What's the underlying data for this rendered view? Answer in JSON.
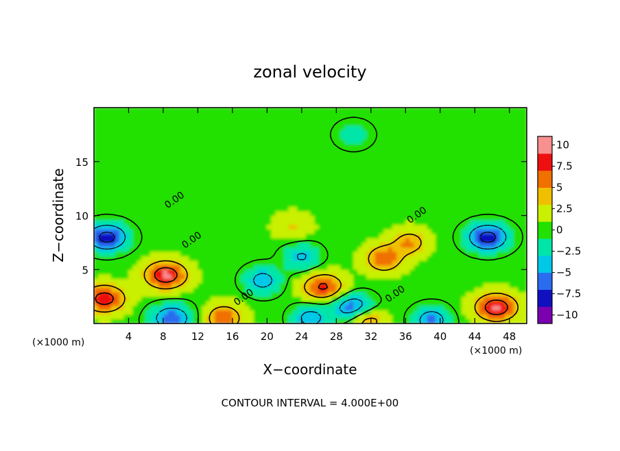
{
  "chart_data": {
    "type": "heatmap",
    "title": "zonal velocity",
    "xlabel": "X−coordinate",
    "ylabel": "Z−coordinate",
    "x_unit_left": "(×1000 m)",
    "x_unit_right": "(×1000 m)",
    "xlim": [
      0,
      50
    ],
    "ylim": [
      0,
      20
    ],
    "x_ticks": [
      4,
      8,
      12,
      16,
      20,
      24,
      28,
      32,
      36,
      40,
      44,
      48
    ],
    "x_tick_labels": [
      "4",
      "8",
      "12",
      "16",
      "20",
      "24",
      "28",
      "32",
      "36",
      "40",
      "44",
      "48"
    ],
    "y_ticks": [
      5,
      10,
      15
    ],
    "y_tick_labels": [
      "5",
      "10",
      "15"
    ],
    "colorbar": {
      "range": [
        -10,
        10
      ],
      "ticks": [
        10,
        7.5,
        5,
        2.5,
        0,
        -2.5,
        -5,
        -7.5,
        -10
      ],
      "tick_labels": [
        "10",
        "7.5",
        "5",
        "2.5",
        "0",
        "−2.5",
        "−5",
        "−7.5",
        "−10"
      ],
      "colors": [
        "#7a00b0",
        "#1010c0",
        "#2a6cf0",
        "#00c8e8",
        "#00e6a8",
        "#22e000",
        "#c8f000",
        "#f0c000",
        "#f07000",
        "#ee1010",
        "#f89090"
      ]
    },
    "contour_interval_text": "CONTOUR INTERVAL = 4.000E+00",
    "contour_labels": [
      {
        "text": "0.00",
        "x": 9.5,
        "y": 11.2
      },
      {
        "text": "0.00",
        "x": 11.5,
        "y": 7.5
      },
      {
        "text": "0.00",
        "x": 17.5,
        "y": 2.2
      },
      {
        "text": "0.00",
        "x": 35.0,
        "y": 2.5
      },
      {
        "text": "0.00",
        "x": 37.5,
        "y": 9.8
      }
    ],
    "field_features": [
      {
        "type": "max",
        "x": 8.3,
        "y": 4.5,
        "value": 10
      },
      {
        "type": "max",
        "x": 26.5,
        "y": 3.4,
        "value": 8
      },
      {
        "type": "max",
        "x": 33.5,
        "y": 6.0,
        "value": 7
      },
      {
        "type": "max",
        "x": 1.2,
        "y": 2.3,
        "value": 9
      },
      {
        "type": "max",
        "x": 46.5,
        "y": 1.5,
        "value": 10
      },
      {
        "type": "max",
        "x": 15.0,
        "y": 0.5,
        "value": 7
      },
      {
        "type": "max",
        "x": 31.5,
        "y": 0.4,
        "value": 6
      },
      {
        "type": "max",
        "x": 36.5,
        "y": 7.5,
        "value": 5
      },
      {
        "type": "max",
        "x": 23.0,
        "y": 9.0,
        "value": 3
      },
      {
        "type": "min",
        "x": 1.5,
        "y": 8.0,
        "value": -10
      },
      {
        "type": "min",
        "x": 45.5,
        "y": 8.0,
        "value": -10
      },
      {
        "type": "min",
        "x": 19.5,
        "y": 4.0,
        "value": -6
      },
      {
        "type": "min",
        "x": 30.0,
        "y": 1.5,
        "value": -8
      },
      {
        "type": "min",
        "x": 9.0,
        "y": 0.5,
        "value": -8
      },
      {
        "type": "min",
        "x": 24.0,
        "y": 6.2,
        "value": -5
      },
      {
        "type": "min",
        "x": 39.0,
        "y": 0.3,
        "value": -7
      },
      {
        "type": "min",
        "x": 25.0,
        "y": 0.5,
        "value": -6
      },
      {
        "type": "min",
        "x": 30.0,
        "y": 17.5,
        "value": -3
      }
    ]
  }
}
